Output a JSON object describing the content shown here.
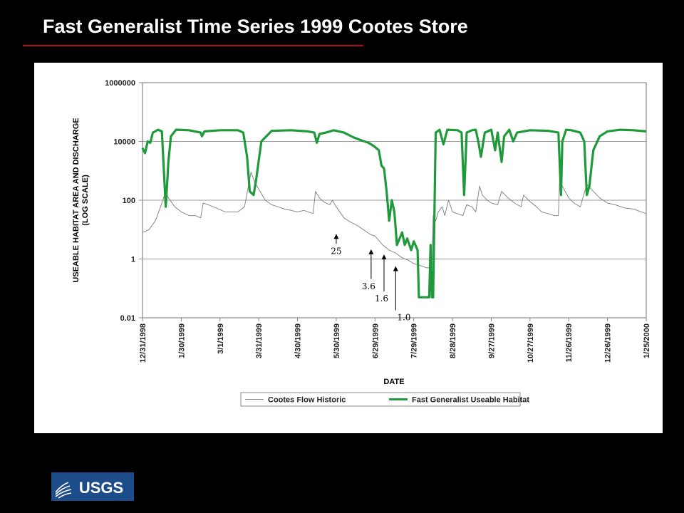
{
  "slide": {
    "title": "Fast Generalist Time Series 1999 Cootes Store",
    "logo_text": "USGS"
  },
  "colors": {
    "background": "#000000",
    "title": "#ffffff",
    "title_rule": "#b01010",
    "habitat": "#1f9a3a",
    "flow": "#888888",
    "logo": "#1d4c8a"
  },
  "chart_data": {
    "type": "line",
    "title": "",
    "xlabel": "DATE",
    "ylabel": "USEABLE HABITAT AREA AND DISCHARGE (LOG SCALE)",
    "y_scale": "log",
    "ylim": [
      0.01,
      1000000
    ],
    "yticks": [
      "0.01",
      "1",
      "100",
      "10000",
      "1000000"
    ],
    "xlim": [
      "1998-12-31",
      "2000-01-25"
    ],
    "xticks": [
      "12/31/1998",
      "1/30/1999",
      "3/1/1999",
      "3/31/1999",
      "4/30/1999",
      "5/30/1999",
      "6/29/1999",
      "7/29/1999",
      "8/28/1999",
      "9/27/1999",
      "10/27/1999",
      "11/26/1999",
      "12/26/1999",
      "1/25/2000"
    ],
    "grid": "horizontal",
    "legend": "bottom",
    "series": [
      {
        "name": "Cootes Flow Historic",
        "color": "#888888",
        "points": [
          [
            "1998-12-31",
            8
          ],
          [
            "1999-01-05",
            10
          ],
          [
            "1999-01-10",
            20
          ],
          [
            "1999-01-14",
            60
          ],
          [
            "1999-01-18",
            200
          ],
          [
            "1999-01-20",
            120
          ],
          [
            "1999-01-25",
            60
          ],
          [
            "1999-01-30",
            40
          ],
          [
            "1999-02-05",
            30
          ],
          [
            "1999-02-10",
            30
          ],
          [
            "1999-02-14",
            25
          ],
          [
            "1999-02-16",
            80
          ],
          [
            "1999-02-20",
            70
          ],
          [
            "1999-02-28",
            50
          ],
          [
            "1999-03-05",
            40
          ],
          [
            "1999-03-15",
            40
          ],
          [
            "1999-03-20",
            60
          ],
          [
            "1999-03-25",
            900
          ],
          [
            "1999-03-28",
            400
          ],
          [
            "1999-04-01",
            200
          ],
          [
            "1999-04-05",
            100
          ],
          [
            "1999-04-10",
            70
          ],
          [
            "1999-04-15",
            60
          ],
          [
            "1999-04-20",
            50
          ],
          [
            "1999-04-25",
            45
          ],
          [
            "1999-04-30",
            40
          ],
          [
            "1999-05-05",
            45
          ],
          [
            "1999-05-12",
            35
          ],
          [
            "1999-05-14",
            200
          ],
          [
            "1999-05-17",
            120
          ],
          [
            "1999-05-20",
            90
          ],
          [
            "1999-05-25",
            70
          ],
          [
            "1999-05-27",
            100
          ],
          [
            "1999-05-30",
            60
          ],
          [
            "1999-06-05",
            25
          ],
          [
            "1999-06-10",
            18
          ],
          [
            "1999-06-15",
            14
          ],
          [
            "1999-06-20",
            10
          ],
          [
            "1999-06-25",
            7
          ],
          [
            "1999-06-29",
            6
          ],
          [
            "1999-07-05",
            3
          ],
          [
            "1999-07-10",
            2
          ],
          [
            "1999-07-15",
            1.6
          ],
          [
            "1999-07-20",
            1.1
          ],
          [
            "1999-07-25",
            0.9
          ],
          [
            "1999-07-29",
            0.7
          ],
          [
            "1999-08-03",
            0.6
          ],
          [
            "1999-08-08",
            0.5
          ],
          [
            "1999-08-12",
            0.5
          ],
          [
            "1999-08-13",
            30
          ],
          [
            "1999-08-15",
            20
          ],
          [
            "1999-08-17",
            40
          ],
          [
            "1999-08-20",
            60
          ],
          [
            "1999-08-22",
            30
          ],
          [
            "1999-08-25",
            100
          ],
          [
            "1999-08-28",
            40
          ],
          [
            "1999-09-05",
            30
          ],
          [
            "1999-09-08",
            70
          ],
          [
            "1999-09-12",
            60
          ],
          [
            "1999-09-15",
            40
          ],
          [
            "1999-09-18",
            300
          ],
          [
            "1999-09-20",
            150
          ],
          [
            "1999-09-24",
            100
          ],
          [
            "1999-09-27",
            80
          ],
          [
            "1999-10-02",
            70
          ],
          [
            "1999-10-05",
            200
          ],
          [
            "1999-10-10",
            120
          ],
          [
            "1999-10-15",
            80
          ],
          [
            "1999-10-20",
            60
          ],
          [
            "1999-10-22",
            150
          ],
          [
            "1999-10-27",
            90
          ],
          [
            "1999-11-01",
            60
          ],
          [
            "1999-11-05",
            40
          ],
          [
            "1999-11-10",
            35
          ],
          [
            "1999-11-15",
            30
          ],
          [
            "1999-11-18",
            30
          ],
          [
            "1999-11-19",
            600
          ],
          [
            "1999-11-21",
            300
          ],
          [
            "1999-11-26",
            120
          ],
          [
            "1999-11-30",
            80
          ],
          [
            "1999-12-05",
            60
          ],
          [
            "1999-12-10",
            350
          ],
          [
            "1999-12-15",
            200
          ],
          [
            "1999-12-20",
            120
          ],
          [
            "1999-12-26",
            80
          ],
          [
            "2000-01-01",
            70
          ],
          [
            "2000-01-08",
            55
          ],
          [
            "2000-01-15",
            50
          ],
          [
            "2000-01-25",
            35
          ]
        ]
      },
      {
        "name": "Fast Generalist Useable Habitat",
        "color": "#1f9a3a",
        "points": [
          [
            "1998-12-31",
            6000
          ],
          [
            "1999-01-02",
            4000
          ],
          [
            "1999-01-04",
            10000
          ],
          [
            "1999-01-06",
            9000
          ],
          [
            "1999-01-08",
            20000
          ],
          [
            "1999-01-12",
            25000
          ],
          [
            "1999-01-15",
            22000
          ],
          [
            "1999-01-16",
            3000
          ],
          [
            "1999-01-18",
            60
          ],
          [
            "1999-01-19",
            300
          ],
          [
            "1999-01-20",
            2000
          ],
          [
            "1999-01-22",
            15000
          ],
          [
            "1999-01-26",
            25000
          ],
          [
            "1999-02-05",
            24000
          ],
          [
            "1999-02-14",
            20000
          ],
          [
            "1999-02-15",
            15000
          ],
          [
            "1999-02-17",
            22000
          ],
          [
            "1999-03-01",
            24000
          ],
          [
            "1999-03-15",
            24000
          ],
          [
            "1999-03-19",
            20000
          ],
          [
            "1999-03-22",
            3000
          ],
          [
            "1999-03-24",
            200
          ],
          [
            "1999-03-27",
            150
          ],
          [
            "1999-03-29",
            500
          ],
          [
            "1999-04-02",
            10000
          ],
          [
            "1999-04-10",
            23000
          ],
          [
            "1999-04-25",
            24000
          ],
          [
            "1999-05-08",
            22000
          ],
          [
            "1999-05-13",
            20000
          ],
          [
            "1999-05-15",
            9000
          ],
          [
            "1999-05-17",
            18000
          ],
          [
            "1999-05-22",
            20000
          ],
          [
            "1999-05-28",
            24000
          ],
          [
            "1999-06-05",
            20000
          ],
          [
            "1999-06-12",
            14000
          ],
          [
            "1999-06-18",
            11000
          ],
          [
            "1999-06-24",
            9000
          ],
          [
            "1999-06-28",
            7000
          ],
          [
            "1999-07-02",
            5000
          ],
          [
            "1999-07-04",
            1500
          ],
          [
            "1999-07-06",
            1200
          ],
          [
            "1999-07-08",
            200
          ],
          [
            "1999-07-10",
            20
          ],
          [
            "1999-07-12",
            100
          ],
          [
            "1999-07-14",
            40
          ],
          [
            "1999-07-16",
            3
          ],
          [
            "1999-07-20",
            8
          ],
          [
            "1999-07-22",
            3
          ],
          [
            "1999-07-24",
            5
          ],
          [
            "1999-07-27",
            2
          ],
          [
            "1999-07-29",
            4
          ],
          [
            "1999-08-01",
            2
          ],
          [
            "1999-08-02",
            0.05
          ],
          [
            "1999-08-10",
            0.05
          ],
          [
            "1999-08-11",
            3
          ],
          [
            "1999-08-12",
            0.05
          ],
          [
            "1999-08-13",
            0.05
          ],
          [
            "1999-08-15",
            20000
          ],
          [
            "1999-08-18",
            25000
          ],
          [
            "1999-08-21",
            8000
          ],
          [
            "1999-08-24",
            25000
          ],
          [
            "1999-09-01",
            24000
          ],
          [
            "1999-09-04",
            20000
          ],
          [
            "1999-09-06",
            150
          ],
          [
            "1999-09-08",
            20000
          ],
          [
            "1999-09-12",
            24000
          ],
          [
            "1999-09-15",
            25000
          ],
          [
            "1999-09-17",
            10000
          ],
          [
            "1999-09-19",
            3000
          ],
          [
            "1999-09-22",
            20000
          ],
          [
            "1999-09-27",
            25000
          ],
          [
            "1999-09-30",
            5000
          ],
          [
            "1999-10-02",
            20000
          ],
          [
            "1999-10-05",
            2000
          ],
          [
            "1999-10-07",
            15000
          ],
          [
            "1999-10-11",
            25000
          ],
          [
            "1999-10-14",
            10000
          ],
          [
            "1999-10-17",
            20000
          ],
          [
            "1999-10-27",
            24000
          ],
          [
            "1999-11-10",
            23000
          ],
          [
            "1999-11-18",
            20000
          ],
          [
            "1999-11-19",
            2000
          ],
          [
            "1999-11-20",
            150
          ],
          [
            "1999-11-21",
            10000
          ],
          [
            "1999-11-24",
            25000
          ],
          [
            "1999-11-28",
            24000
          ],
          [
            "1999-12-05",
            20000
          ],
          [
            "1999-12-08",
            10000
          ],
          [
            "1999-12-10",
            150
          ],
          [
            "1999-12-12",
            300
          ],
          [
            "1999-12-15",
            5000
          ],
          [
            "1999-12-20",
            15000
          ],
          [
            "1999-12-26",
            22000
          ],
          [
            "2000-01-05",
            25000
          ],
          [
            "2000-01-15",
            24000
          ],
          [
            "2000-01-25",
            22000
          ]
        ]
      }
    ],
    "annotations": [
      {
        "label": "25",
        "date": "1999-05-30",
        "value": 10
      },
      {
        "label": "3.6",
        "date": "1999-06-26",
        "value": 3
      },
      {
        "label": "1.6",
        "date": "1999-07-06",
        "value": 2
      },
      {
        "label": "1.0",
        "date": "1999-07-15",
        "value": 0.8
      }
    ]
  }
}
